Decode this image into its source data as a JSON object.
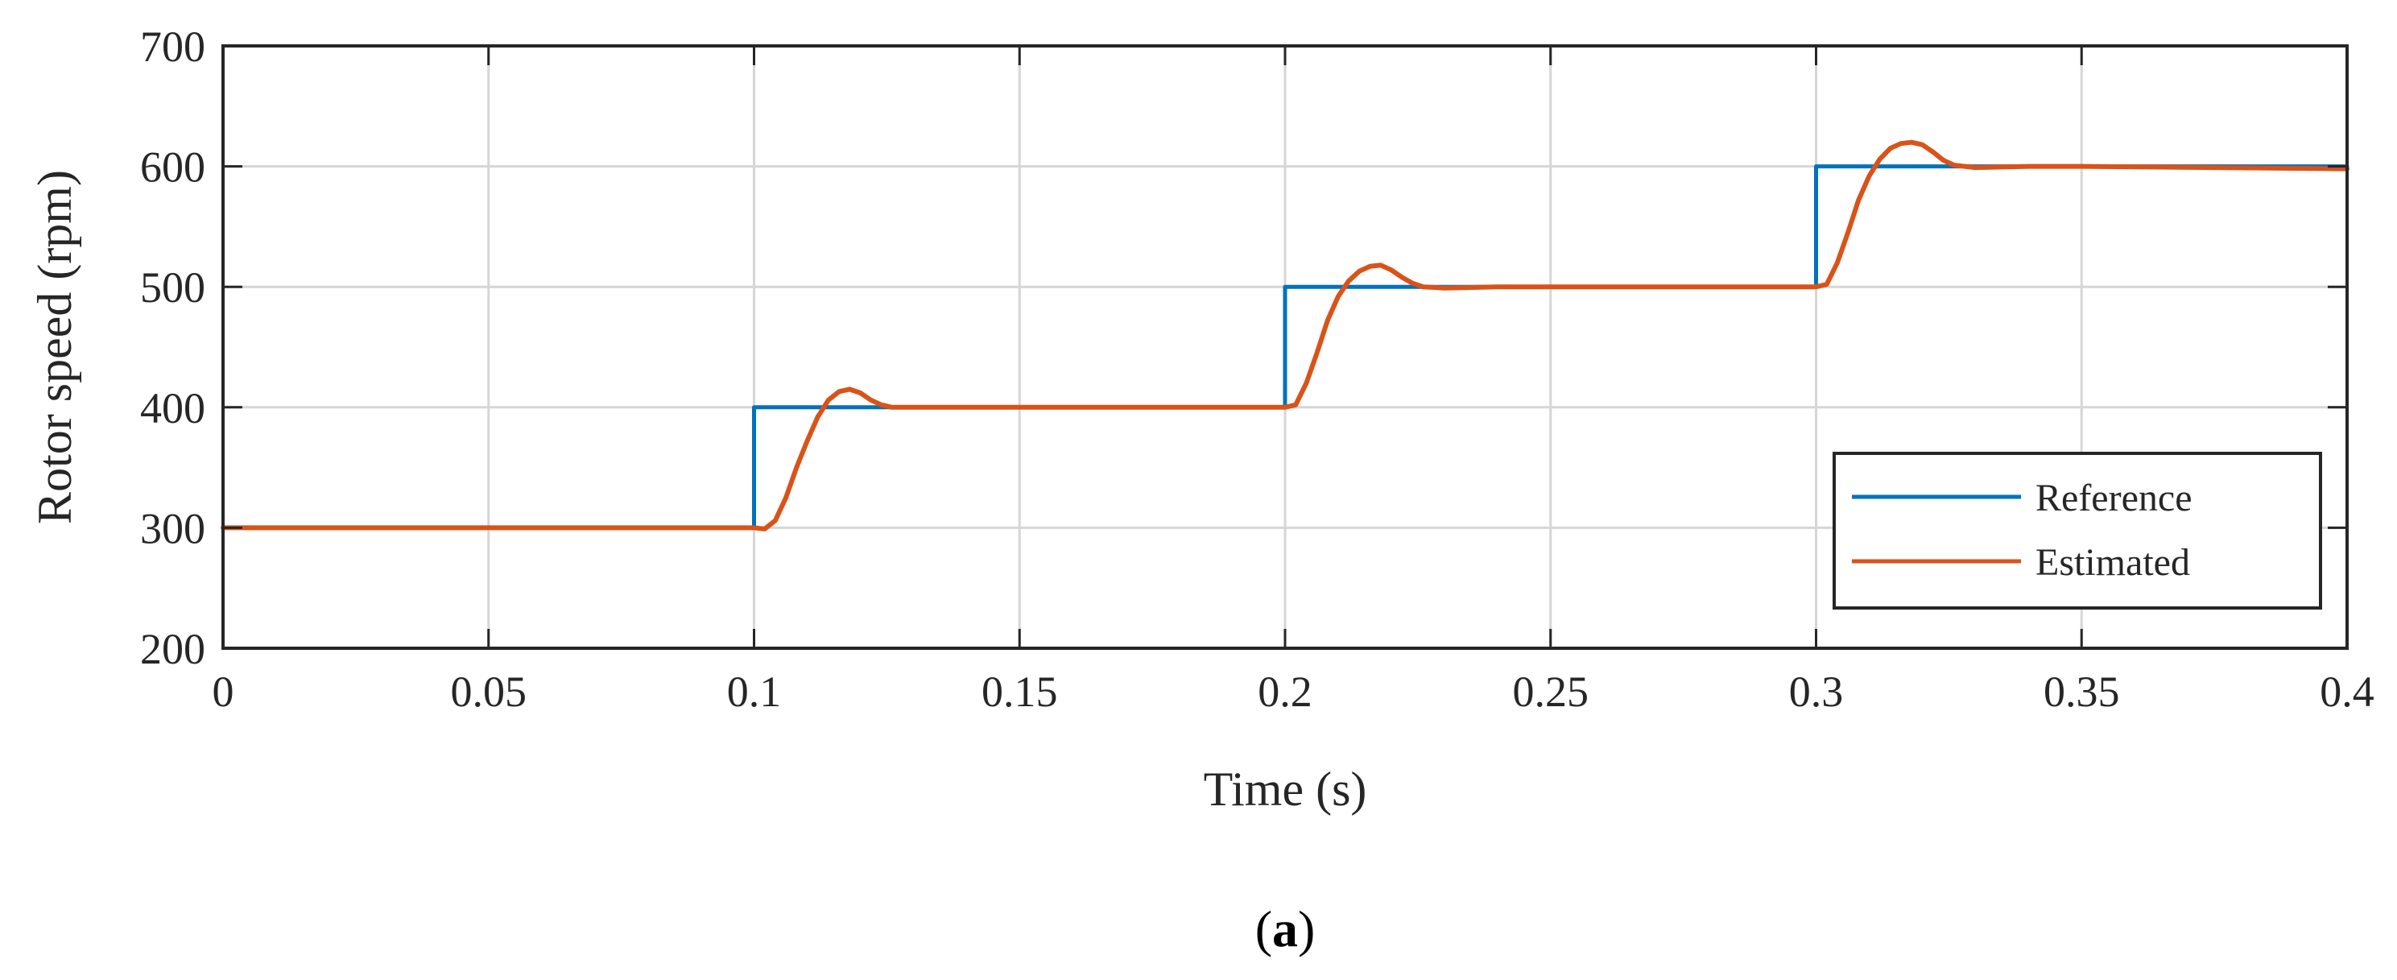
{
  "chart_data": {
    "type": "line",
    "xlabel": "Time (s)",
    "ylabel": "Rotor speed (rpm)",
    "xlim": [
      0,
      0.4
    ],
    "ylim": [
      200,
      700
    ],
    "xticks": [
      0,
      0.05,
      0.1,
      0.15,
      0.2,
      0.25,
      0.3,
      0.35,
      0.4
    ],
    "xtick_labels": [
      "0",
      "0.05",
      "0.1",
      "0.15",
      "0.2",
      "0.25",
      "0.3",
      "0.35",
      "0.4"
    ],
    "yticks": [
      200,
      300,
      400,
      500,
      600,
      700
    ],
    "ytick_labels": [
      "200",
      "300",
      "400",
      "500",
      "600",
      "700"
    ],
    "grid": true,
    "legend_position": "bottom-right",
    "series": [
      {
        "name": "Reference",
        "color": "#0072BD",
        "x": [
          0,
          0.1,
          0.1,
          0.2,
          0.2,
          0.3,
          0.3,
          0.4
        ],
        "y": [
          300,
          300,
          400,
          400,
          500,
          500,
          600,
          600
        ]
      },
      {
        "name": "Estimated",
        "color": "#D95319",
        "x": [
          0,
          0.05,
          0.1,
          0.102,
          0.104,
          0.106,
          0.108,
          0.11,
          0.112,
          0.114,
          0.116,
          0.118,
          0.12,
          0.122,
          0.124,
          0.126,
          0.13,
          0.14,
          0.15,
          0.2,
          0.202,
          0.204,
          0.206,
          0.208,
          0.21,
          0.212,
          0.214,
          0.216,
          0.218,
          0.22,
          0.222,
          0.224,
          0.226,
          0.23,
          0.24,
          0.25,
          0.3,
          0.302,
          0.304,
          0.306,
          0.308,
          0.31,
          0.312,
          0.314,
          0.316,
          0.318,
          0.32,
          0.322,
          0.324,
          0.326,
          0.33,
          0.34,
          0.35,
          0.4
        ],
        "y": [
          300,
          300,
          300,
          299,
          306,
          325,
          350,
          372,
          392,
          406,
          413,
          415,
          412,
          406,
          402,
          400,
          400,
          400,
          400,
          400,
          402,
          420,
          445,
          472,
          492,
          505,
          513,
          517,
          518,
          514,
          508,
          503,
          500,
          499,
          500,
          500,
          500,
          502,
          520,
          545,
          572,
          592,
          606,
          615,
          619,
          620,
          618,
          612,
          605,
          601,
          599,
          600,
          600,
          598
        ]
      }
    ]
  },
  "caption": {
    "prefix": "(",
    "letter": "a",
    "suffix": ")"
  }
}
